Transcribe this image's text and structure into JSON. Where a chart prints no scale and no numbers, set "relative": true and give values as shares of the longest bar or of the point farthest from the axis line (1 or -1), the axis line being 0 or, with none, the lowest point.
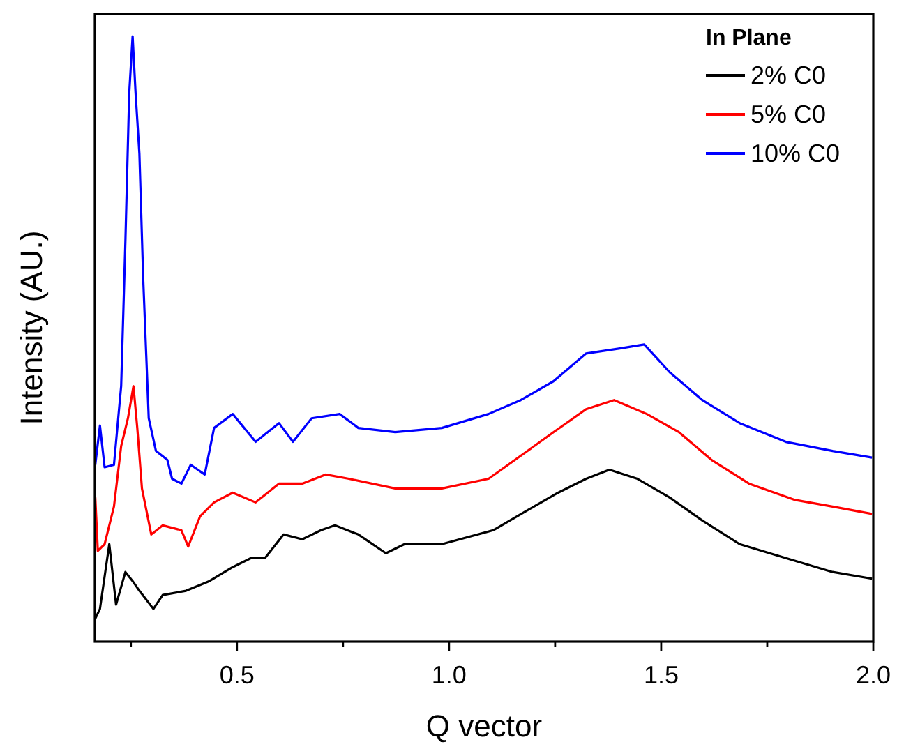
{
  "chart_data": {
    "type": "line",
    "relative": true,
    "xlabel": "Q vector",
    "ylabel": "Intensity (AU.)",
    "legend_title": "In Plane",
    "legend": "top right",
    "grid": false,
    "xlim": [
      0.165,
      2.0
    ],
    "xticks": [
      {
        "value": 0.25,
        "label": null
      },
      0.5,
      {
        "value": 0.75,
        "label": null
      },
      {
        "value": 1,
        "label": "1.0"
      },
      {
        "value": 1.25,
        "label": null
      },
      1.5,
      {
        "value": 1.75,
        "label": null
      },
      {
        "value": 2,
        "label": "2.0"
      }
    ],
    "series": [
      {
        "name": "2% C0",
        "color": "#000000",
        "x": [
          0.166,
          0.177,
          0.199,
          0.215,
          0.237,
          0.254,
          0.27,
          0.303,
          0.325,
          0.38,
          0.435,
          0.49,
          0.533,
          0.566,
          0.61,
          0.654,
          0.698,
          0.731,
          0.786,
          0.851,
          0.895,
          0.983,
          1.104,
          1.18,
          1.257,
          1.323,
          1.378,
          1.444,
          1.52,
          1.597,
          1.685,
          1.794,
          1.904,
          1.997
        ],
        "values": [
          0.038,
          0.054,
          0.161,
          0.061,
          0.115,
          0.1,
          0.084,
          0.054,
          0.077,
          0.084,
          0.1,
          0.123,
          0.138,
          0.138,
          0.177,
          0.169,
          0.184,
          0.192,
          0.177,
          0.146,
          0.161,
          0.161,
          0.184,
          0.215,
          0.246,
          0.269,
          0.284,
          0.269,
          0.238,
          0.2,
          0.161,
          0.138,
          0.115,
          0.104
        ]
      },
      {
        "name": "5% C0",
        "color": "#ff0000",
        "x": [
          0.166,
          0.172,
          0.188,
          0.21,
          0.227,
          0.243,
          0.256,
          0.265,
          0.276,
          0.298,
          0.325,
          0.369,
          0.385,
          0.413,
          0.446,
          0.49,
          0.544,
          0.599,
          0.654,
          0.709,
          0.764,
          0.873,
          0.983,
          1.093,
          1.169,
          1.246,
          1.323,
          1.389,
          1.466,
          1.542,
          1.619,
          1.707,
          1.816,
          1.904,
          1.997
        ],
        "values": [
          0.238,
          0.15,
          0.161,
          0.223,
          0.323,
          0.369,
          0.422,
          0.353,
          0.253,
          0.177,
          0.192,
          0.184,
          0.157,
          0.207,
          0.23,
          0.246,
          0.23,
          0.261,
          0.261,
          0.276,
          0.269,
          0.253,
          0.253,
          0.269,
          0.307,
          0.346,
          0.384,
          0.399,
          0.376,
          0.346,
          0.3,
          0.261,
          0.234,
          0.223,
          0.211
        ]
      },
      {
        "name": "10% C0",
        "color": "#0000ff",
        "x": [
          0.166,
          0.177,
          0.188,
          0.21,
          0.227,
          0.237,
          0.246,
          0.254,
          0.261,
          0.27,
          0.279,
          0.292,
          0.309,
          0.336,
          0.347,
          0.369,
          0.391,
          0.424,
          0.446,
          0.49,
          0.544,
          0.599,
          0.632,
          0.676,
          0.742,
          0.786,
          0.873,
          0.983,
          1.093,
          1.169,
          1.246,
          1.323,
          1.4,
          1.46,
          1.52,
          1.597,
          1.685,
          1.794,
          1.904,
          1.997
        ],
        "values": [
          0.292,
          0.357,
          0.288,
          0.292,
          0.422,
          0.661,
          0.906,
          1,
          0.906,
          0.806,
          0.599,
          0.369,
          0.315,
          0.3,
          0.269,
          0.261,
          0.292,
          0.276,
          0.353,
          0.376,
          0.33,
          0.361,
          0.33,
          0.369,
          0.376,
          0.353,
          0.346,
          0.353,
          0.376,
          0.399,
          0.43,
          0.476,
          0.484,
          0.491,
          0.445,
          0.399,
          0.361,
          0.33,
          0.315,
          0.304
        ]
      }
    ]
  }
}
